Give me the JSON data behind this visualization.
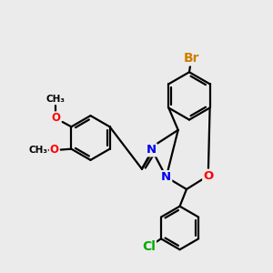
{
  "bg_color": "#ebebeb",
  "bond_color": "#000000",
  "bond_width": 1.6,
  "atom_colors": {
    "Br": "#cd7f00",
    "O": "#ff0000",
    "N": "#0000ee",
    "Cl": "#00aa00",
    "C": "#000000"
  },
  "font_size": 8.5,
  "figsize": [
    3.0,
    3.0
  ],
  "dpi": 100
}
